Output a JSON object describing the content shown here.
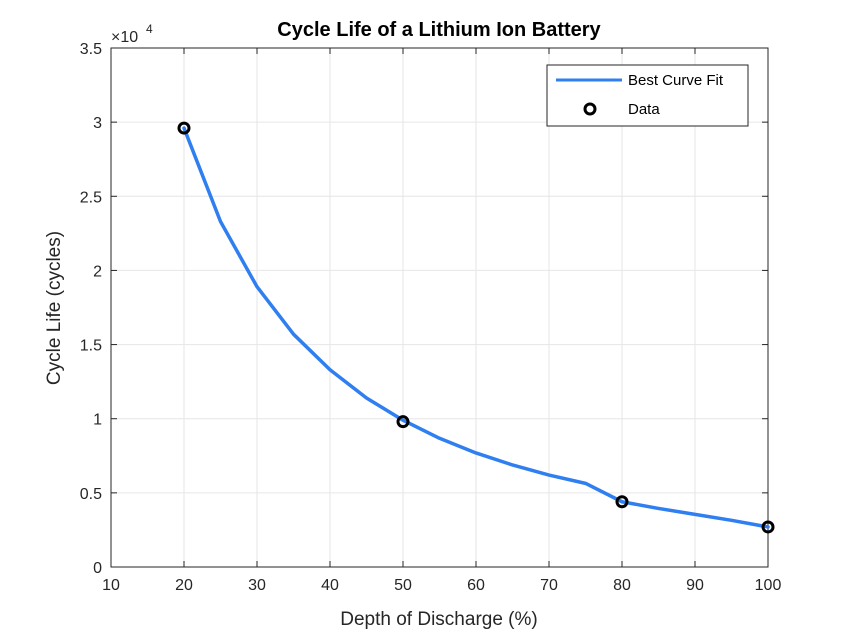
{
  "chart_data": {
    "type": "line",
    "title": "Cycle Life of a Lithium Ion Battery",
    "xlabel": "Depth of Discharge (%)",
    "ylabel": "Cycle Life (cycles)",
    "xlim": [
      10,
      100
    ],
    "ylim": [
      0,
      35000
    ],
    "xticks": [
      10,
      20,
      30,
      40,
      50,
      60,
      70,
      80,
      90,
      100
    ],
    "yticks": [
      0,
      5000,
      10000,
      15000,
      20000,
      25000,
      30000,
      35000
    ],
    "ytick_labels": [
      "0",
      "0.5",
      "1",
      "1.5",
      "2",
      "2.5",
      "3",
      "3.5"
    ],
    "y_exponent_base": "×10",
    "y_exponent_power": "4",
    "grid": true,
    "legend_position": "top-right",
    "series": [
      {
        "name": "Best Curve Fit",
        "kind": "line",
        "color": "#2f7ff0",
        "x": [
          20,
          25,
          30,
          35,
          40,
          45,
          50,
          55,
          60,
          65,
          70,
          75,
          80,
          85,
          90,
          95,
          100
        ],
        "y": [
          29600,
          23300,
          18900,
          15700,
          13300,
          11400,
          9900,
          8680,
          7690,
          6880,
          6200,
          5640,
          4400,
          3950,
          3550,
          3150,
          2700
        ]
      },
      {
        "name": "Data",
        "kind": "markers",
        "color": "#000000",
        "x": [
          20,
          50,
          80,
          100
        ],
        "y": [
          29600,
          9800,
          4400,
          2700
        ]
      }
    ]
  }
}
